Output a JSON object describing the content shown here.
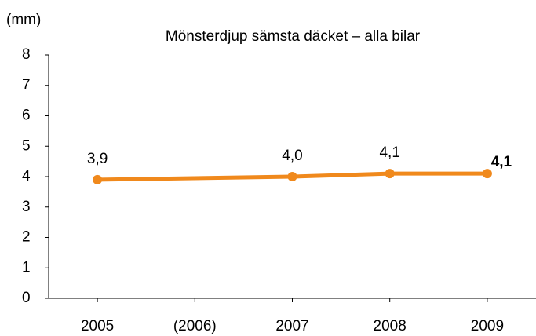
{
  "chart_data": {
    "type": "line",
    "title": "Mönsterdjup sämsta däcket – alla bilar",
    "y_label": "(mm)",
    "x": [
      2005,
      2007,
      2008,
      2009
    ],
    "series": [
      {
        "name": "Mönsterdjup",
        "color": "#f0891c",
        "values": [
          3.9,
          4.0,
          4.1,
          4.1
        ],
        "value_labels": [
          "3,9",
          "4,0",
          "4,1",
          "4,1"
        ]
      }
    ],
    "xlim": [
      2004.5,
      2009.5
    ],
    "xticks": [
      2005,
      {
        "value": 2006,
        "label": "(2006)"
      },
      2007,
      2008,
      2009
    ],
    "ylim": [
      0,
      8
    ],
    "yticks": [
      0,
      1,
      2,
      3,
      4,
      5,
      6,
      7,
      8
    ],
    "grid": false
  }
}
